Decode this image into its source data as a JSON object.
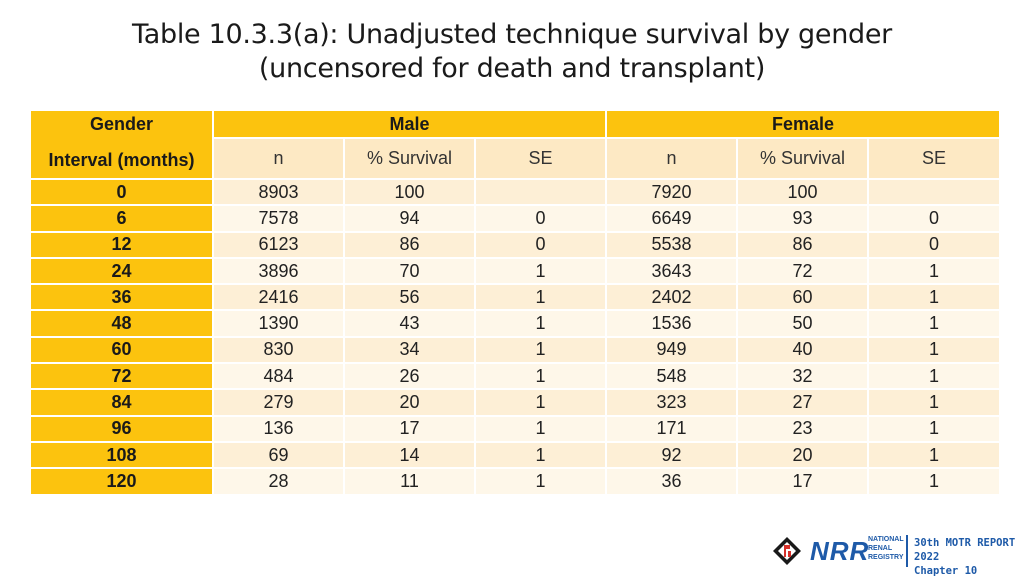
{
  "title": {
    "line1": "Table 10.3.3(a): Unadjusted technique survival by gender",
    "line2": "(uncensored for death and transplant)"
  },
  "table": {
    "col_gender": "Gender",
    "col_interval": "Interval (months)",
    "group_male": "Male",
    "group_female": "Female",
    "sub_n": "n",
    "sub_survival": "% Survival",
    "sub_se": "SE",
    "rows": [
      [
        "0",
        "8903",
        "100",
        "",
        "7920",
        "100",
        ""
      ],
      [
        "6",
        "7578",
        "94",
        "0",
        "6649",
        "93",
        "0"
      ],
      [
        "12",
        "6123",
        "86",
        "0",
        "5538",
        "86",
        "0"
      ],
      [
        "24",
        "3896",
        "70",
        "1",
        "3643",
        "72",
        "1"
      ],
      [
        "36",
        "2416",
        "56",
        "1",
        "2402",
        "60",
        "1"
      ],
      [
        "48",
        "1390",
        "43",
        "1",
        "1536",
        "50",
        "1"
      ],
      [
        "60",
        "830",
        "34",
        "1",
        "949",
        "40",
        "1"
      ],
      [
        "72",
        "484",
        "26",
        "1",
        "548",
        "32",
        "1"
      ],
      [
        "84",
        "279",
        "20",
        "1",
        "323",
        "27",
        "1"
      ],
      [
        "96",
        "136",
        "17",
        "1",
        "171",
        "23",
        "1"
      ],
      [
        "108",
        "69",
        "14",
        "1",
        "92",
        "20",
        "1"
      ],
      [
        "120",
        "28",
        "11",
        "1",
        "36",
        "17",
        "1"
      ]
    ]
  },
  "footer": {
    "logo_text": "NRR",
    "logo_sub": [
      "NATIONAL",
      "RENAL",
      "REGISTRY"
    ],
    "report_line1": "30th MOTR REPORT 2022",
    "report_line2": "Chapter 10",
    "brand_color": "#1e5aa8",
    "accent_color": "#fcc30e"
  }
}
